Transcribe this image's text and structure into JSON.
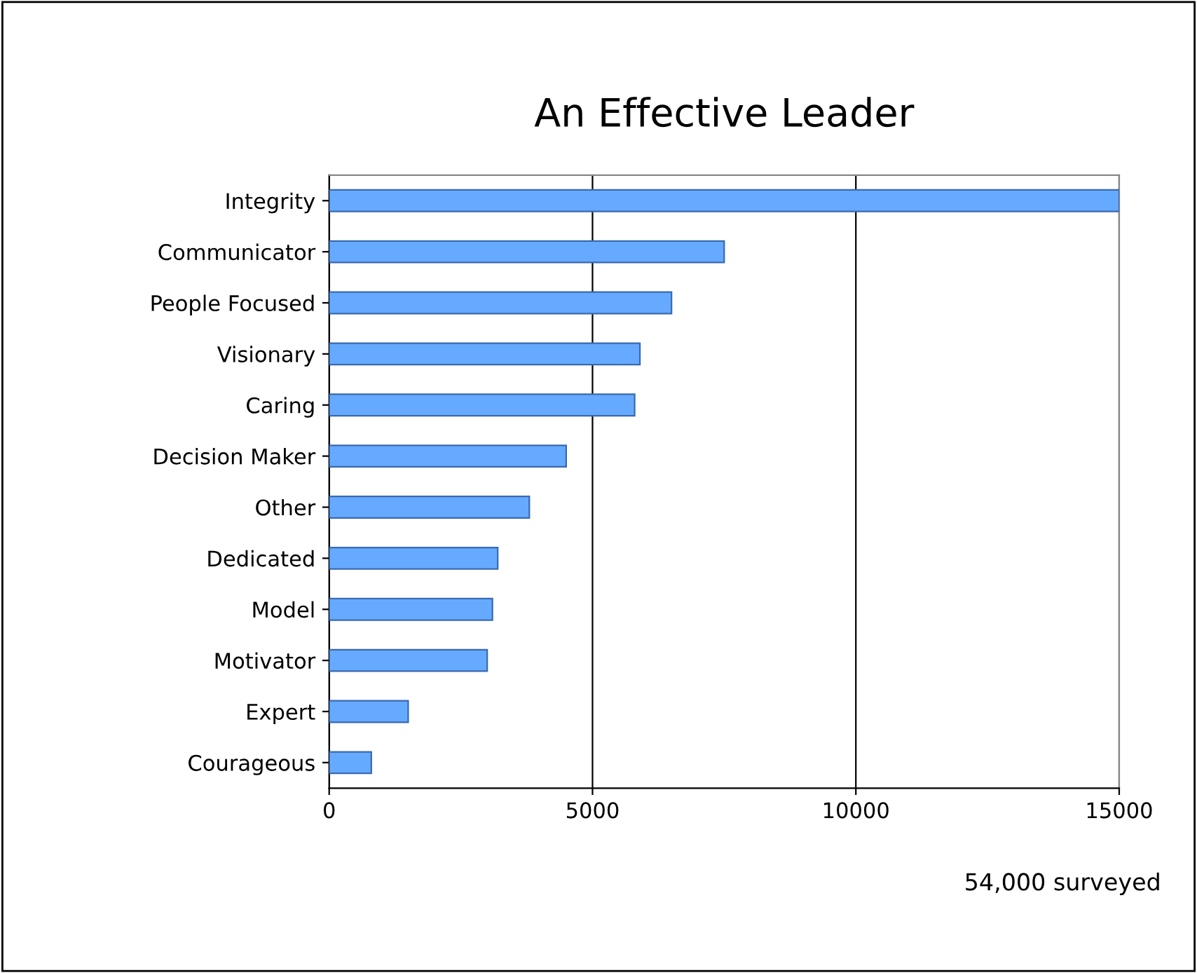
{
  "chart_data": {
    "type": "bar",
    "orientation": "horizontal",
    "title": "An Effective Leader",
    "categories": [
      "Integrity",
      "Communicator",
      "People Focused",
      "Visionary",
      "Caring",
      "Decision Maker",
      "Other",
      "Dedicated",
      "Model",
      "Motivator",
      "Expert",
      "Courageous"
    ],
    "values": [
      15000,
      7500,
      6500,
      5900,
      5800,
      4500,
      3800,
      3200,
      3100,
      3000,
      1500,
      800
    ],
    "color": "#66aaff",
    "xlim": [
      0,
      15000
    ],
    "xticks": [
      0,
      5000,
      10000,
      15000
    ],
    "grid": "x",
    "annotations": [
      "54,000 surveyed"
    ]
  }
}
